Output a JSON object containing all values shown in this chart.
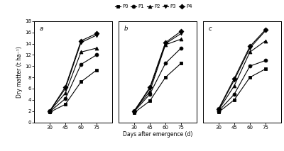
{
  "x": [
    30,
    45,
    60,
    75
  ],
  "panels": [
    {
      "label": "a",
      "series": {
        "P0": [
          1.8,
          3.2,
          7.2,
          9.3
        ],
        "P1": [
          1.9,
          4.2,
          10.3,
          12.0
        ],
        "P2": [
          2.0,
          5.2,
          12.5,
          13.2
        ],
        "P3": [
          2.0,
          6.0,
          14.2,
          15.5
        ],
        "P4": [
          2.0,
          6.3,
          14.5,
          15.8
        ]
      }
    },
    {
      "label": "b",
      "series": {
        "P0": [
          1.7,
          3.8,
          8.0,
          10.5
        ],
        "P1": [
          1.9,
          5.0,
          10.5,
          13.2
        ],
        "P2": [
          2.0,
          5.5,
          13.8,
          14.8
        ],
        "P3": [
          2.0,
          6.0,
          14.0,
          15.8
        ],
        "P4": [
          2.0,
          6.2,
          14.2,
          16.2
        ]
      }
    },
    {
      "label": "c",
      "series": {
        "P0": [
          1.8,
          4.0,
          8.0,
          9.5
        ],
        "P1": [
          2.0,
          5.0,
          10.0,
          11.0
        ],
        "P2": [
          2.2,
          6.5,
          12.5,
          14.5
        ],
        "P3": [
          2.3,
          7.5,
          13.2,
          16.3
        ],
        "P4": [
          2.4,
          7.8,
          13.5,
          16.5
        ]
      }
    }
  ],
  "series_order": [
    "P0",
    "P1",
    "P2",
    "P3",
    "P4"
  ],
  "markers": [
    "s",
    "o",
    "^",
    "v",
    "D"
  ],
  "markerfacecolors": [
    "black",
    "black",
    "black",
    "black",
    "black"
  ],
  "color": "black",
  "xlim": [
    15,
    90
  ],
  "ylim": [
    0,
    18
  ],
  "xticks": [
    30,
    45,
    60,
    75
  ],
  "yticks": [
    0,
    2,
    4,
    6,
    8,
    10,
    12,
    14,
    16,
    18
  ],
  "xlabel": "Days after emergence (d)",
  "ylabel": "Dry matter (t ha⁻¹)",
  "markersize": 3.5,
  "linewidth": 0.8,
  "background_color": "#ffffff"
}
